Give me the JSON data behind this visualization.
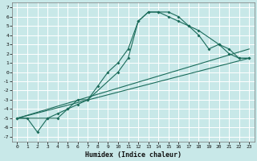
{
  "xlabel": "Humidex (Indice chaleur)",
  "bg_color": "#c8e8e8",
  "line_color": "#1a6b5a",
  "xlim": [
    -0.5,
    23.5
  ],
  "ylim": [
    -7.5,
    7.5
  ],
  "xticks": [
    0,
    1,
    2,
    3,
    4,
    5,
    6,
    7,
    8,
    9,
    10,
    11,
    12,
    13,
    14,
    15,
    16,
    17,
    18,
    19,
    20,
    21,
    22,
    23
  ],
  "yticks": [
    -7,
    -6,
    -5,
    -4,
    -3,
    -2,
    -1,
    0,
    1,
    2,
    3,
    4,
    5,
    6,
    7
  ],
  "line1_x": [
    0,
    1,
    2,
    3,
    4,
    5,
    6,
    7,
    8,
    9,
    10,
    11,
    12,
    13,
    14,
    15,
    16,
    17,
    18,
    19,
    20,
    21,
    22,
    23
  ],
  "line1_y": [
    -5,
    -5,
    -6.5,
    -5,
    -4.5,
    -4,
    -3,
    -3,
    -1.5,
    0,
    1,
    2.5,
    5.5,
    6.5,
    6.5,
    6.5,
    6,
    5,
    4,
    2.5,
    3,
    2,
    1.5,
    1.5
  ],
  "line2_x": [
    0,
    3,
    4,
    5,
    6,
    7,
    10,
    11,
    12,
    13,
    14,
    15,
    16,
    17,
    18,
    20,
    21,
    22,
    23
  ],
  "line2_y": [
    -5,
    -5,
    -5,
    -4,
    -3.5,
    -3,
    0,
    1.5,
    5.5,
    6.5,
    6.5,
    6,
    5.5,
    5,
    4.5,
    3,
    2.5,
    1.5,
    1.5
  ],
  "line3_x": [
    0,
    23
  ],
  "line3_y": [
    -5,
    1.5
  ],
  "line4_x": [
    0,
    23
  ],
  "line4_y": [
    -5,
    2.5
  ]
}
